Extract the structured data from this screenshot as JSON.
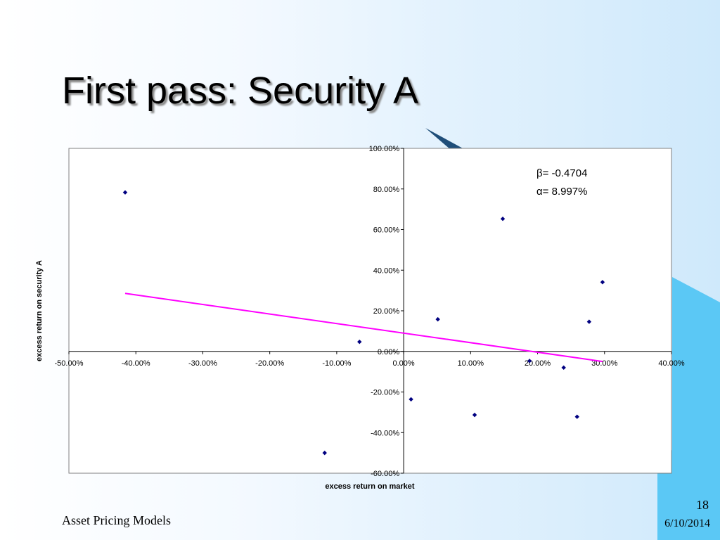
{
  "slide": {
    "title": "First pass: Security A",
    "footer_left": "Asset Pricing Models",
    "page_number": "18",
    "date": "6/10/2014"
  },
  "colors": {
    "points": "#000080",
    "regression_line": "#ff00ff",
    "accent_shape": "#5bc8f5"
  },
  "chart_data": {
    "type": "scatter",
    "title": "",
    "xlabel": "excess return on market",
    "ylabel": "excess return on security A",
    "xlim": [
      -0.5,
      0.4
    ],
    "ylim": [
      -0.6,
      1.0
    ],
    "x_ticks": [
      -0.5,
      -0.4,
      -0.3,
      -0.2,
      -0.1,
      0.0,
      0.1,
      0.2,
      0.3,
      0.4
    ],
    "y_ticks": [
      -0.6,
      -0.4,
      -0.2,
      0.0,
      0.2,
      0.4,
      0.6,
      0.8,
      1.0
    ],
    "x_tick_labels": [
      "-50.00%",
      "-40.00%",
      "-30.00%",
      "-20.00%",
      "-10.00%",
      "0.00%",
      "10.00%",
      "20.00%",
      "30.00%",
      "40.00%"
    ],
    "y_tick_labels": [
      "-60.00%",
      "-40.00%",
      "-20.00%",
      "0.00%",
      "20.00%",
      "40.00%",
      "60.00%",
      "80.00%",
      "100.00%"
    ],
    "grid": false,
    "points": [
      {
        "x": -0.416,
        "y": 0.783
      },
      {
        "x": -0.066,
        "y": 0.047
      },
      {
        "x": -0.118,
        "y": -0.5
      },
      {
        "x": 0.011,
        "y": -0.236
      },
      {
        "x": 0.051,
        "y": 0.158
      },
      {
        "x": 0.106,
        "y": -0.313
      },
      {
        "x": 0.148,
        "y": 0.653
      },
      {
        "x": 0.188,
        "y": -0.047
      },
      {
        "x": 0.239,
        "y": -0.08
      },
      {
        "x": 0.259,
        "y": -0.322
      },
      {
        "x": 0.277,
        "y": 0.146
      },
      {
        "x": 0.297,
        "y": 0.341
      }
    ],
    "regression_line": {
      "x": [
        -0.416,
        0.297
      ],
      "y": [
        0.2857,
        -0.0497
      ]
    },
    "annotations": [
      "β= -0.4704",
      "α= 8.997%"
    ]
  }
}
